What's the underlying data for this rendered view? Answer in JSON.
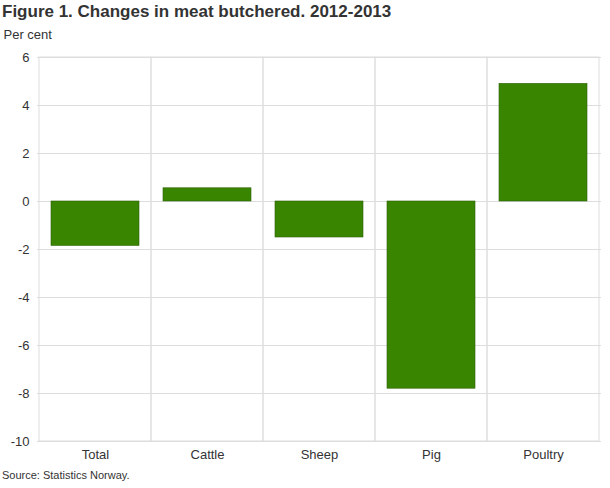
{
  "chart_data": {
    "type": "bar",
    "title": "Figure 1. Changes in meat butchered. 2012-2013",
    "y_label": "Per cent",
    "source": "Source: Statistics Norway.",
    "categories": [
      "Total",
      "Cattle",
      "Sheep",
      "Pig",
      "Poultry"
    ],
    "values": [
      -1.85,
      0.55,
      -1.5,
      -7.8,
      4.9
    ],
    "color": "#3a8500",
    "ylim": [
      -10,
      6
    ],
    "yticks": [
      -10,
      -8,
      -6,
      -4,
      -2,
      0,
      2,
      4,
      6
    ],
    "grid": true
  }
}
